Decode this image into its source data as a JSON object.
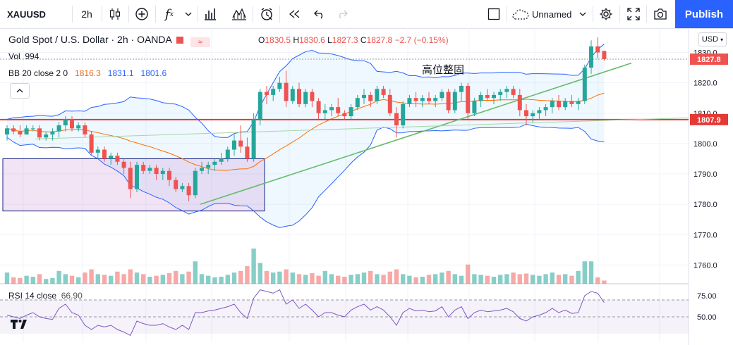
{
  "toolbar": {
    "symbol": "XAUUSD",
    "interval": "2h",
    "layout_name": "Unnamed",
    "publish_label": "Publish",
    "icons": [
      "candles-icon",
      "plus-circle-icon",
      "indicators-fx-icon",
      "chevron-down-icon",
      "bar-chart-icon",
      "alert-icon",
      "replay-icon",
      "undo-icon",
      "redo-icon",
      "layout-square-icon",
      "cloud-icon",
      "settings-gear-icon",
      "fullscreen-icon",
      "camera-snapshot-icon"
    ]
  },
  "legend": {
    "title": "Gold Spot / U.S. Dollar · 2h · OANDA",
    "open_label": "O",
    "open": "1830.5",
    "high_label": "H",
    "high": "1830.6",
    "low_label": "L",
    "low": "1827.3",
    "close_label": "C",
    "close": "1827.8",
    "change": "−2.7 (−0.15%)",
    "vol_label": "Vol",
    "vol": "994",
    "bb_label": "BB 20 close 2 0",
    "bb_basis": "1816.3",
    "bb_upper": "1831.1",
    "bb_lower": "1801.6",
    "rsi_label": "RSI 14 close",
    "rsi_value": "66.90"
  },
  "currency": "USD",
  "annotation": "高位整固",
  "colors": {
    "up": "#26a69a",
    "down": "#ef5350",
    "accent": "#2962ff"
  },
  "chart_data": {
    "type": "candlestick",
    "symbol": "XAUUSD",
    "interval": "2h",
    "ylim": [
      1755,
      1838
    ],
    "y_ticks": [
      1760,
      1770,
      1780,
      1790,
      1800,
      1810,
      1820,
      1830
    ],
    "tick_labels": [
      "1760.0",
      "1770.0",
      "1780.0",
      "1790.0",
      "1800.0",
      "1810.0",
      "1820.0",
      "1830.0"
    ],
    "last_price": "1827.8",
    "level_price": "1807.9",
    "candles": [
      [
        1803,
        1806,
        1801,
        1805
      ],
      [
        1805,
        1806,
        1803,
        1804
      ],
      [
        1804,
        1806,
        1802,
        1803
      ],
      [
        1803,
        1806,
        1803,
        1805
      ],
      [
        1805,
        1806,
        1804,
        1805
      ],
      [
        1805,
        1806,
        1801,
        1802
      ],
      [
        1802,
        1804,
        1801,
        1803
      ],
      [
        1803,
        1805,
        1801,
        1804
      ],
      [
        1804,
        1807,
        1802,
        1806
      ],
      [
        1806,
        1809,
        1804,
        1808
      ],
      [
        1808,
        1809,
        1804,
        1805
      ],
      [
        1805,
        1807,
        1804,
        1806
      ],
      [
        1806,
        1807,
        1802,
        1803
      ],
      [
        1803,
        1804,
        1796,
        1797
      ],
      [
        1797,
        1799,
        1795,
        1798
      ],
      [
        1798,
        1799,
        1794,
        1795
      ],
      [
        1795,
        1797,
        1793,
        1796
      ],
      [
        1796,
        1797,
        1793,
        1794
      ],
      [
        1794,
        1795,
        1790,
        1792
      ],
      [
        1792,
        1794,
        1782,
        1785
      ],
      [
        1785,
        1794,
        1784,
        1793
      ],
      [
        1793,
        1794,
        1790,
        1791
      ],
      [
        1791,
        1793,
        1790,
        1792
      ],
      [
        1792,
        1793,
        1788,
        1790
      ],
      [
        1790,
        1792,
        1788,
        1791
      ],
      [
        1791,
        1792,
        1786,
        1788
      ],
      [
        1788,
        1789,
        1784,
        1785
      ],
      [
        1785,
        1787,
        1784,
        1786
      ],
      [
        1786,
        1787,
        1781,
        1783
      ],
      [
        1783,
        1792,
        1782,
        1791
      ],
      [
        1791,
        1794,
        1790,
        1792
      ],
      [
        1792,
        1794,
        1790,
        1793
      ],
      [
        1793,
        1795,
        1791,
        1794
      ],
      [
        1794,
        1797,
        1793,
        1795
      ],
      [
        1795,
        1799,
        1794,
        1798
      ],
      [
        1798,
        1803,
        1796,
        1801
      ],
      [
        1801,
        1806,
        1797,
        1799
      ],
      [
        1799,
        1802,
        1794,
        1795
      ],
      [
        1795,
        1810,
        1794,
        1808
      ],
      [
        1808,
        1818,
        1806,
        1817
      ],
      [
        1817,
        1819,
        1813,
        1816
      ],
      [
        1816,
        1819,
        1814,
        1818
      ],
      [
        1818,
        1822,
        1817,
        1820
      ],
      [
        1820,
        1824,
        1812,
        1814
      ],
      [
        1814,
        1819,
        1813,
        1818
      ],
      [
        1818,
        1820,
        1812,
        1813
      ],
      [
        1813,
        1818,
        1812,
        1817
      ],
      [
        1817,
        1818,
        1812,
        1814
      ],
      [
        1814,
        1815,
        1808,
        1810
      ],
      [
        1810,
        1813,
        1808,
        1811
      ],
      [
        1811,
        1813,
        1809,
        1812
      ],
      [
        1812,
        1815,
        1809,
        1810
      ],
      [
        1810,
        1811,
        1808,
        1809
      ],
      [
        1809,
        1813,
        1808,
        1812
      ],
      [
        1812,
        1816,
        1811,
        1815
      ],
      [
        1815,
        1818,
        1813,
        1816
      ],
      [
        1816,
        1817,
        1812,
        1814
      ],
      [
        1814,
        1819,
        1813,
        1818
      ],
      [
        1818,
        1819,
        1815,
        1816
      ],
      [
        1816,
        1818,
        1809,
        1810
      ],
      [
        1810,
        1812,
        1802,
        1806
      ],
      [
        1806,
        1814,
        1805,
        1813
      ],
      [
        1813,
        1816,
        1812,
        1815
      ],
      [
        1815,
        1817,
        1812,
        1814
      ],
      [
        1814,
        1816,
        1812,
        1815
      ],
      [
        1815,
        1817,
        1813,
        1814
      ],
      [
        1814,
        1816,
        1812,
        1815
      ],
      [
        1815,
        1818,
        1814,
        1817
      ],
      [
        1817,
        1818,
        1810,
        1811
      ],
      [
        1811,
        1818,
        1810,
        1817
      ],
      [
        1817,
        1820,
        1814,
        1819
      ],
      [
        1819,
        1820,
        1808,
        1810
      ],
      [
        1810,
        1815,
        1809,
        1814
      ],
      [
        1814,
        1817,
        1812,
        1816
      ],
      [
        1816,
        1818,
        1814,
        1815
      ],
      [
        1815,
        1817,
        1813,
        1816
      ],
      [
        1816,
        1818,
        1814,
        1817
      ],
      [
        1817,
        1819,
        1815,
        1818
      ],
      [
        1818,
        1819,
        1815,
        1816
      ],
      [
        1816,
        1818,
        1809,
        1811
      ],
      [
        1811,
        1813,
        1806,
        1809
      ],
      [
        1809,
        1811,
        1807,
        1810
      ],
      [
        1810,
        1812,
        1808,
        1811
      ],
      [
        1811,
        1813,
        1809,
        1812
      ],
      [
        1812,
        1815,
        1810,
        1814
      ],
      [
        1814,
        1816,
        1811,
        1812
      ],
      [
        1812,
        1815,
        1811,
        1814
      ],
      [
        1814,
        1816,
        1812,
        1813
      ],
      [
        1813,
        1815,
        1811,
        1814
      ],
      [
        1814,
        1826,
        1813,
        1825
      ],
      [
        1825,
        1834,
        1823,
        1832
      ],
      [
        1832,
        1835,
        1828,
        1830
      ],
      [
        1830.5,
        1830.6,
        1827.3,
        1827.8
      ]
    ],
    "volume": [
      35,
      20,
      18,
      25,
      22,
      30,
      15,
      18,
      40,
      30,
      25,
      20,
      35,
      45,
      30,
      28,
      25,
      38,
      30,
      45,
      35,
      30,
      22,
      25,
      28,
      33,
      40,
      30,
      38,
      70,
      30,
      25,
      20,
      22,
      28,
      35,
      40,
      55,
      110,
      65,
      40,
      35,
      38,
      45,
      35,
      30,
      28,
      33,
      25,
      40,
      30,
      25,
      22,
      28,
      30,
      35,
      40,
      30,
      28,
      38,
      45,
      30,
      25,
      20,
      22,
      28,
      30,
      35,
      40,
      30,
      25,
      60,
      30,
      28,
      25,
      22,
      28,
      30,
      35,
      30,
      32,
      28,
      25,
      30,
      35,
      28,
      30,
      25,
      40,
      70,
      70,
      20,
      10
    ],
    "rsi": [
      52,
      50,
      48,
      52,
      55,
      50,
      48,
      47,
      60,
      65,
      55,
      52,
      40,
      35,
      40,
      38,
      40,
      35,
      32,
      28,
      45,
      42,
      40,
      40,
      42,
      38,
      35,
      40,
      35,
      55,
      55,
      57,
      58,
      60,
      62,
      65,
      55,
      48,
      72,
      82,
      80,
      78,
      82,
      65,
      70,
      60,
      65,
      58,
      50,
      55,
      55,
      52,
      50,
      58,
      62,
      65,
      58,
      62,
      58,
      50,
      40,
      55,
      60,
      57,
      58,
      56,
      57,
      62,
      50,
      58,
      62,
      48,
      55,
      58,
      56,
      57,
      58,
      60,
      56,
      48,
      45,
      50,
      52,
      55,
      60,
      55,
      58,
      54,
      55,
      75,
      80,
      78,
      66.9
    ],
    "rsi_levels": [
      70,
      50
    ]
  }
}
